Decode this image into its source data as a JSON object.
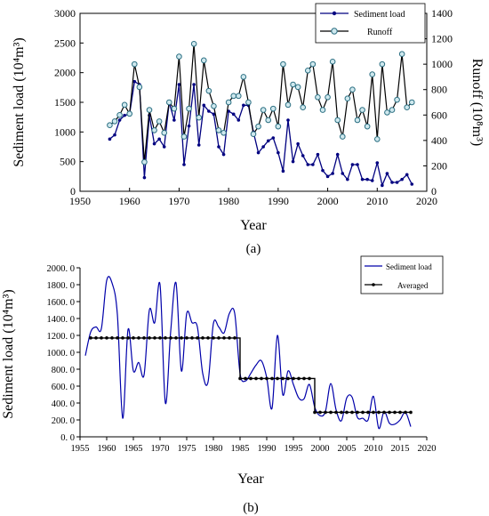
{
  "chart_data": [
    {
      "type": "line",
      "panel_label": "(a)",
      "xlabel": "Year",
      "ylabel_left": "Sediment load (10⁴m³)",
      "ylabel_right": "Runoff (10⁸m³)",
      "xlim": [
        1950,
        2020
      ],
      "ylim_left": [
        0,
        3000
      ],
      "ylim_right": [
        0,
        1400
      ],
      "x_ticks": [
        1950,
        1960,
        1970,
        1980,
        1990,
        2000,
        2010,
        2020
      ],
      "y_ticks_left": [
        0,
        500,
        1000,
        1500,
        2000,
        2500,
        3000
      ],
      "y_ticks_right": [
        0,
        200,
        400,
        600,
        800,
        1000,
        1200,
        1400
      ],
      "legend_position": "top-right",
      "grid": false,
      "x": [
        1956,
        1957,
        1958,
        1959,
        1960,
        1961,
        1962,
        1963,
        1964,
        1965,
        1966,
        1967,
        1968,
        1969,
        1970,
        1971,
        1972,
        1973,
        1974,
        1975,
        1976,
        1977,
        1978,
        1979,
        1980,
        1981,
        1982,
        1983,
        1984,
        1985,
        1986,
        1987,
        1988,
        1989,
        1990,
        1991,
        1992,
        1993,
        1994,
        1995,
        1996,
        1997,
        1998,
        1999,
        2000,
        2001,
        2002,
        2003,
        2004,
        2005,
        2006,
        2007,
        2008,
        2009,
        2010,
        2011,
        2012,
        2013,
        2014,
        2015,
        2016,
        2017
      ],
      "series": [
        {
          "name": "Sediment load",
          "axis": "left",
          "color": "#000080",
          "values": [
            880,
            950,
            1200,
            1280,
            1300,
            1850,
            1800,
            230,
            1280,
            800,
            880,
            750,
            1500,
            1200,
            1800,
            450,
            1100,
            1800,
            780,
            1450,
            1350,
            1300,
            750,
            620,
            1350,
            1300,
            1200,
            1450,
            1450,
            1000,
            650,
            750,
            850,
            900,
            650,
            340,
            1200,
            500,
            800,
            600,
            450,
            450,
            620,
            350,
            250,
            300,
            620,
            300,
            200,
            450,
            450,
            200,
            200,
            180,
            480,
            100,
            300,
            150,
            150,
            200,
            280,
            120
          ]
        },
        {
          "name": "Runoff",
          "axis": "right",
          "color": "#000000",
          "values": [
            520,
            550,
            600,
            680,
            610,
            1000,
            820,
            230,
            640,
            480,
            550,
            460,
            700,
            650,
            1060,
            430,
            650,
            1160,
            580,
            1030,
            790,
            670,
            480,
            460,
            700,
            750,
            750,
            900,
            700,
            450,
            510,
            640,
            560,
            650,
            510,
            1000,
            680,
            840,
            820,
            660,
            950,
            1000,
            740,
            640,
            740,
            1020,
            560,
            430,
            730,
            800,
            560,
            640,
            510,
            920,
            410,
            1000,
            620,
            640,
            720,
            1080,
            660,
            700
          ]
        }
      ]
    },
    {
      "type": "line",
      "panel_label": "(b)",
      "xlabel": "Year",
      "ylabel": "Sediment load (10⁴m³)",
      "xlim": [
        1955,
        2020
      ],
      "ylim": [
        0,
        2000
      ],
      "x_ticks": [
        1955,
        1960,
        1965,
        1970,
        1975,
        1980,
        1985,
        1990,
        1995,
        2000,
        2005,
        2010,
        2015,
        2020
      ],
      "y_ticks": [
        "0. 0",
        "200. 0",
        "400. 0",
        "600. 0",
        "800. 0",
        "1000. 0",
        "1200. 0",
        "1400. 0",
        "1600. 0",
        "1800. 0",
        "2000. 0"
      ],
      "legend_position": "top-right",
      "grid": false,
      "series": [
        {
          "name": "Sediment load",
          "color": "#0000aa",
          "x": [
            1956,
            1957,
            1958,
            1959,
            1960,
            1961,
            1962,
            1963,
            1964,
            1965,
            1966,
            1967,
            1968,
            1969,
            1970,
            1971,
            1972,
            1973,
            1974,
            1975,
            1976,
            1977,
            1978,
            1979,
            1980,
            1981,
            1982,
            1983,
            1984,
            1985,
            1986,
            1987,
            1988,
            1989,
            1990,
            1991,
            1992,
            1993,
            1994,
            1995,
            1996,
            1997,
            1998,
            1999,
            2000,
            2001,
            2002,
            2003,
            2004,
            2005,
            2006,
            2007,
            2008,
            2009,
            2010,
            2011,
            2012,
            2013,
            2014,
            2015,
            2016,
            2017
          ],
          "values": [
            960,
            1240,
            1300,
            1280,
            1850,
            1820,
            1450,
            220,
            1270,
            780,
            880,
            730,
            1500,
            1350,
            1800,
            400,
            1250,
            1820,
            780,
            1460,
            1350,
            1300,
            750,
            650,
            1340,
            1300,
            1230,
            1460,
            1460,
            750,
            660,
            750,
            850,
            900,
            700,
            340,
            1200,
            500,
            780,
            620,
            460,
            450,
            620,
            350,
            250,
            300,
            630,
            320,
            190,
            460,
            470,
            230,
            220,
            200,
            480,
            100,
            300,
            160,
            150,
            200,
            290,
            120
          ]
        },
        {
          "name": "Averaged",
          "color": "#000000",
          "x": [
            1957,
            1958,
            1959,
            1960,
            1961,
            1962,
            1963,
            1964,
            1965,
            1966,
            1967,
            1968,
            1969,
            1970,
            1971,
            1972,
            1973,
            1974,
            1975,
            1976,
            1977,
            1978,
            1979,
            1980,
            1981,
            1982,
            1983,
            1984,
            1985,
            1986,
            1987,
            1988,
            1989,
            1990,
            1991,
            1992,
            1993,
            1994,
            1995,
            1996,
            1997,
            1998,
            1999,
            2000,
            2001,
            2002,
            2003,
            2004,
            2005,
            2006,
            2007,
            2008,
            2009,
            2010,
            2011,
            2012,
            2013,
            2014,
            2015,
            2016,
            2017
          ],
          "values": [
            1170,
            1170,
            1170,
            1170,
            1170,
            1170,
            1170,
            1170,
            1170,
            1170,
            1170,
            1170,
            1170,
            1170,
            1170,
            1170,
            1170,
            1170,
            1170,
            1170,
            1170,
            1170,
            1170,
            1170,
            1170,
            1170,
            1170,
            1170,
            690,
            690,
            690,
            690,
            690,
            690,
            690,
            690,
            690,
            690,
            690,
            690,
            690,
            690,
            290,
            290,
            290,
            290,
            290,
            290,
            290,
            290,
            290,
            290,
            290,
            290,
            290,
            290,
            290,
            290,
            290,
            290,
            290
          ]
        }
      ]
    }
  ]
}
